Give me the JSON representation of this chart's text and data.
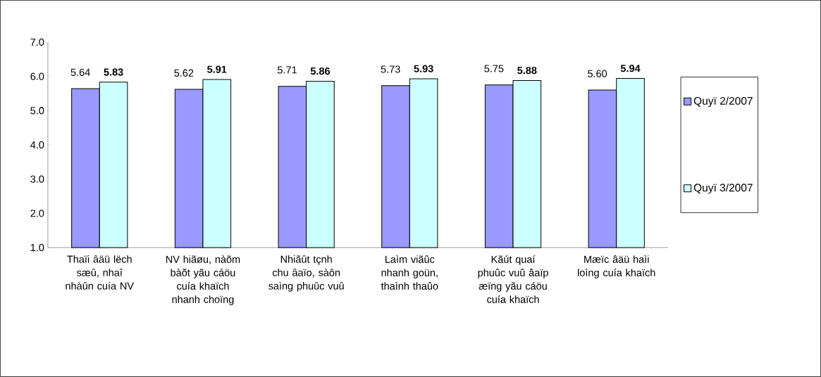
{
  "chart_data": {
    "type": "bar",
    "categories": [
      "Thaïi âäü lëch sæû, nhaî nhàûn cuía NV",
      "NV hiãøu, nàõm bàõt yãu cáöu cuía khaïch nhanh choïng",
      "Nhiãût tçnh chu âaïo, sàôn saìng phuûc vuû",
      "Laìm viãûc nhanh goün, thaình thaûo",
      "Kãút quaí phuûc vuû âaïp æïng yãu cáöu cuía khaïch",
      "Mæïc âäü haìi loìng cuía khaïch"
    ],
    "series": [
      {
        "name": "Quyï 2/2007",
        "color": "#9999ff",
        "values": [
          5.64,
          5.62,
          5.71,
          5.73,
          5.75,
          5.6
        ],
        "value_labels": [
          "5.64",
          "5.62",
          "5.71",
          "5.73",
          "5.75",
          "5.60"
        ]
      },
      {
        "name": "Quyï 3/2007",
        "color": "#ccffff",
        "values": [
          5.83,
          5.91,
          5.86,
          5.93,
          5.88,
          5.94
        ],
        "value_labels": [
          "**5.83**",
          "**5.91**",
          "**5.86**",
          "**5.93**",
          "**5.88**",
          "**5.94**"
        ]
      }
    ],
    "ylim": [
      1,
      7
    ],
    "yticks": [
      {
        "value": 1,
        "label": "1.0"
      },
      {
        "value": 2,
        "label": "2.0"
      },
      {
        "value": 3,
        "label": "3.0"
      },
      {
        "value": 4,
        "label": "4.0"
      },
      {
        "value": 5,
        "label": "5.0"
      },
      {
        "value": 6,
        "label": "6.0"
      },
      {
        "value": 7,
        "label": "7.0"
      }
    ],
    "grid": false,
    "legend": "right"
  }
}
